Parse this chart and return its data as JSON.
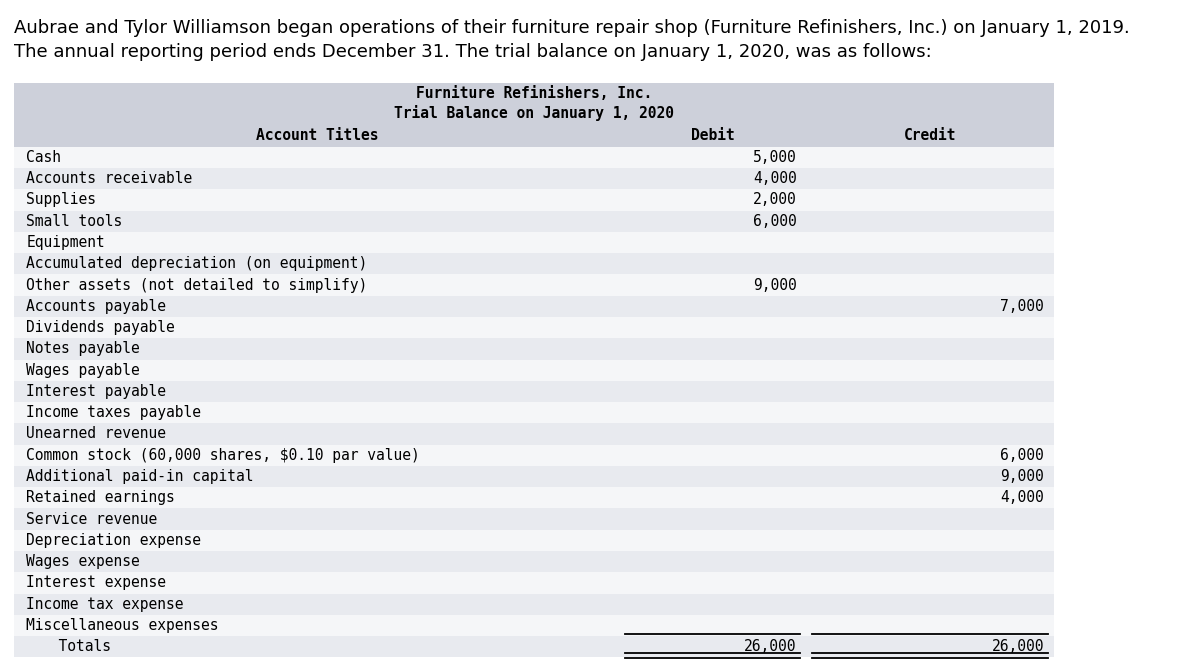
{
  "intro_line1": "Aubrae and Tylor Williamson began operations of their furniture repair shop (Furniture Refinishers, Inc.) on January 1, 2019.",
  "intro_line2": "The annual reporting period ends December 31. The trial balance on January 1, 2020, was as follows:",
  "table_title_line1": "Furniture Refinishers, Inc.",
  "table_title_line2": "Trial Balance on January 1, 2020",
  "col_header_account": "Account Titles",
  "col_header_debit": "Debit",
  "col_header_credit": "Credit",
  "rows": [
    {
      "account": "Cash",
      "debit": "5,000",
      "credit": ""
    },
    {
      "account": "Accounts receivable",
      "debit": "4,000",
      "credit": ""
    },
    {
      "account": "Supplies",
      "debit": "2,000",
      "credit": ""
    },
    {
      "account": "Small tools",
      "debit": "6,000",
      "credit": ""
    },
    {
      "account": "Equipment",
      "debit": "",
      "credit": ""
    },
    {
      "account": "Accumulated depreciation (on equipment)",
      "debit": "",
      "credit": ""
    },
    {
      "account": "Other assets (not detailed to simplify)",
      "debit": "9,000",
      "credit": ""
    },
    {
      "account": "Accounts payable",
      "debit": "",
      "credit": "7,000"
    },
    {
      "account": "Dividends payable",
      "debit": "",
      "credit": ""
    },
    {
      "account": "Notes payable",
      "debit": "",
      "credit": ""
    },
    {
      "account": "Wages payable",
      "debit": "",
      "credit": ""
    },
    {
      "account": "Interest payable",
      "debit": "",
      "credit": ""
    },
    {
      "account": "Income taxes payable",
      "debit": "",
      "credit": ""
    },
    {
      "account": "Unearned revenue",
      "debit": "",
      "credit": ""
    },
    {
      "account": "Common stock (60,000 shares, $0.10 par value)",
      "debit": "",
      "credit": "6,000"
    },
    {
      "account": "Additional paid-in capital",
      "debit": "",
      "credit": "9,000"
    },
    {
      "account": "Retained earnings",
      "debit": "",
      "credit": "4,000"
    },
    {
      "account": "Service revenue",
      "debit": "",
      "credit": ""
    },
    {
      "account": "Depreciation expense",
      "debit": "",
      "credit": ""
    },
    {
      "account": "Wages expense",
      "debit": "",
      "credit": ""
    },
    {
      "account": "Interest expense",
      "debit": "",
      "credit": ""
    },
    {
      "account": "Income tax expense",
      "debit": "",
      "credit": ""
    },
    {
      "account": "Miscellaneous expenses",
      "debit": "",
      "credit": ""
    }
  ],
  "totals_label": "  Totals",
  "totals_debit": "26,000",
  "totals_credit": "26,000",
  "header_bg_color": "#cdd0da",
  "row_alt_bg": "#e8eaef",
  "row_white_bg": "#f5f6f8",
  "table_outer_bg": "#c8cbd4",
  "intro_font_size": 13.0,
  "header_font_size": 10.5,
  "row_font_size": 10.5,
  "fig_bg": "#ffffff",
  "text_color": "#000000"
}
